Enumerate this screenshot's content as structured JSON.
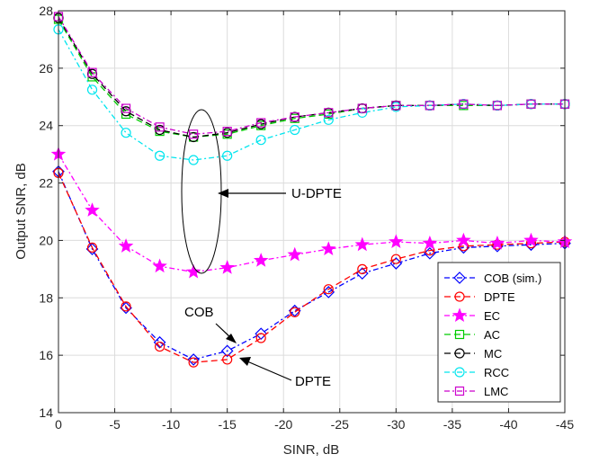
{
  "chart_data": {
    "type": "line",
    "xlabel": "SINR, dB",
    "ylabel": "Output SNR, dB",
    "xlim": [
      0,
      -45
    ],
    "ylim": [
      14,
      28
    ],
    "grid": true,
    "legend_position": "bottom-right",
    "x_ticks": [
      0,
      -5,
      -10,
      -15,
      -20,
      -25,
      -30,
      -35,
      -40,
      -45
    ],
    "y_ticks": [
      14,
      16,
      18,
      20,
      22,
      24,
      26,
      28
    ],
    "x": [
      0,
      -3,
      -6,
      -9,
      -12,
      -15,
      -18,
      -21,
      -24,
      -27,
      -30,
      -33,
      -36,
      -39,
      -42,
      -45
    ],
    "series": [
      {
        "name": "COB (sim.)",
        "color": "#0000ff",
        "marker": "diamond",
        "values": [
          22.4,
          19.7,
          17.65,
          16.45,
          15.85,
          16.15,
          16.75,
          17.55,
          18.2,
          18.85,
          19.2,
          19.55,
          19.75,
          19.8,
          19.85,
          19.9
        ]
      },
      {
        "name": "DPTE",
        "color": "#ff0000",
        "marker": "circle",
        "values": [
          22.35,
          19.75,
          17.7,
          16.3,
          15.75,
          15.85,
          16.6,
          17.5,
          18.3,
          19.0,
          19.35,
          19.65,
          19.8,
          19.85,
          19.9,
          19.95
        ]
      },
      {
        "name": "EC",
        "color": "#ff00ff",
        "marker": "star",
        "values": [
          23.0,
          21.05,
          19.8,
          19.1,
          18.9,
          19.05,
          19.3,
          19.5,
          19.7,
          19.85,
          19.95,
          19.9,
          20.0,
          19.9,
          20.0,
          19.95
        ]
      },
      {
        "name": "AC",
        "color": "#00cc00",
        "marker": "square",
        "values": [
          27.7,
          25.7,
          24.4,
          23.8,
          23.6,
          23.7,
          24.0,
          24.25,
          24.4,
          24.6,
          24.7,
          24.7,
          24.7,
          24.7,
          24.75,
          24.75
        ]
      },
      {
        "name": "MC",
        "color": "#000000",
        "marker": "circle",
        "values": [
          27.75,
          25.8,
          24.5,
          23.85,
          23.6,
          23.75,
          24.05,
          24.3,
          24.45,
          24.6,
          24.7,
          24.7,
          24.75,
          24.7,
          24.75,
          24.75
        ]
      },
      {
        "name": "RCC",
        "color": "#00e5ee",
        "marker": "circle",
        "values": [
          27.35,
          25.25,
          23.75,
          22.95,
          22.8,
          22.95,
          23.5,
          23.85,
          24.2,
          24.45,
          24.65,
          24.7,
          24.75,
          24.7,
          24.75,
          24.75
        ]
      },
      {
        "name": "LMC",
        "color": "#cc00cc",
        "marker": "square",
        "values": [
          27.8,
          25.85,
          24.6,
          23.95,
          23.7,
          23.8,
          24.1,
          24.3,
          24.45,
          24.6,
          24.7,
          24.7,
          24.75,
          24.7,
          24.75,
          24.75
        ]
      }
    ],
    "annotations": [
      "U-DPTE",
      "COB",
      "DPTE"
    ]
  }
}
